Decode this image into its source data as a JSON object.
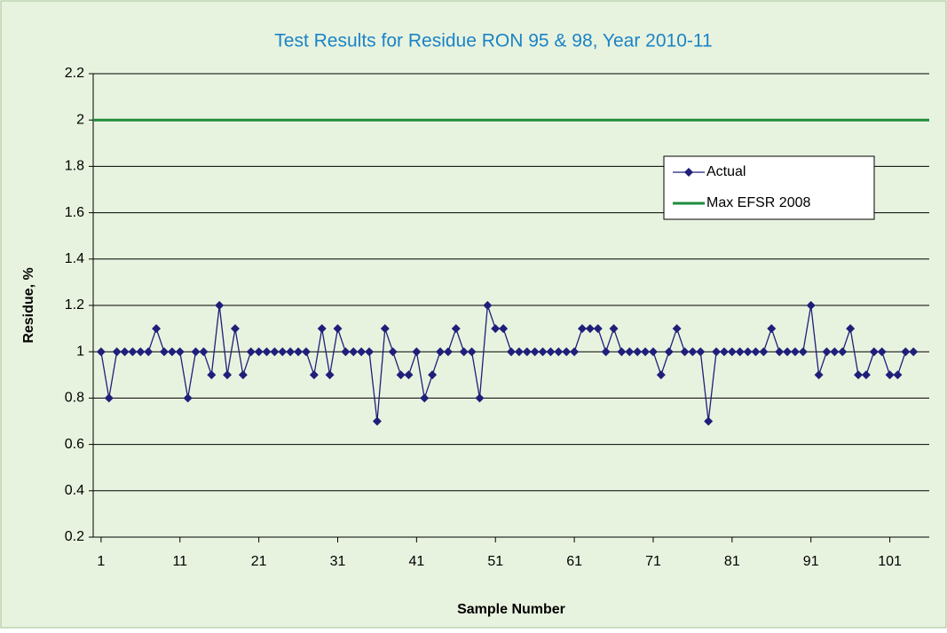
{
  "chart_data": {
    "type": "line",
    "title": "Test Results for Residue RON 95 & 98, Year 2010-11",
    "x_label": "Sample Number",
    "y_label": "Residue, %",
    "x": [
      1,
      2,
      3,
      4,
      5,
      6,
      7,
      8,
      9,
      10,
      11,
      12,
      13,
      14,
      15,
      16,
      17,
      18,
      19,
      20,
      21,
      22,
      23,
      24,
      25,
      26,
      27,
      28,
      29,
      30,
      31,
      32,
      33,
      34,
      35,
      36,
      37,
      38,
      39,
      40,
      41,
      42,
      43,
      44,
      45,
      46,
      47,
      48,
      49,
      50,
      51,
      52,
      53,
      54,
      55,
      56,
      57,
      58,
      59,
      60,
      61,
      62,
      63,
      64,
      65,
      66,
      67,
      68,
      69,
      70,
      71,
      72,
      73,
      74,
      75,
      76,
      77,
      78,
      79,
      80,
      81,
      82,
      83,
      84,
      85,
      86,
      87,
      88,
      89,
      90,
      91,
      92,
      93,
      94,
      95,
      96,
      97,
      98,
      99,
      100,
      101,
      102,
      103,
      104
    ],
    "series": [
      {
        "name": "Actual",
        "color": "#1f1f7a",
        "values": [
          1,
          0.8,
          1,
          1,
          1,
          1,
          1,
          1.1,
          1,
          1,
          1,
          0.8,
          1,
          1,
          0.9,
          1.2,
          0.9,
          1.1,
          0.9,
          1,
          1,
          1,
          1,
          1,
          1,
          1,
          1,
          0.9,
          1.1,
          0.9,
          1.1,
          1,
          1,
          1,
          1,
          0.7,
          1.1,
          1,
          0.9,
          0.9,
          1,
          0.8,
          0.9,
          1,
          1,
          1.1,
          1,
          1,
          0.8,
          1.2,
          1.1,
          1.1,
          1,
          1,
          1,
          1,
          1,
          1,
          1,
          1,
          1,
          1.1,
          1.1,
          1.1,
          1,
          1.1,
          1,
          1,
          1,
          1,
          1,
          0.9,
          1,
          1.1,
          1,
          1,
          1,
          0.7,
          1,
          1,
          1,
          1,
          1,
          1,
          1,
          1.1,
          1,
          1,
          1,
          1,
          1.2,
          0.9,
          1,
          1,
          1,
          1.1,
          0.9,
          0.9,
          1,
          1,
          0.9,
          0.9,
          1,
          1
        ]
      }
    ],
    "reference_lines": [
      {
        "name": "Max EFSR 2008",
        "color": "#1e8c3c",
        "value": 2
      }
    ],
    "xlim": [
      0,
      106
    ],
    "xticks": [
      1,
      11,
      21,
      31,
      41,
      51,
      61,
      71,
      81,
      91,
      101
    ],
    "ylim": [
      0.2,
      2.2
    ],
    "yticks": [
      0.2,
      0.4,
      0.6,
      0.8,
      1,
      1.2,
      1.4,
      1.6,
      1.8,
      2,
      2.2
    ],
    "grid": true,
    "legend": "upper-right"
  }
}
